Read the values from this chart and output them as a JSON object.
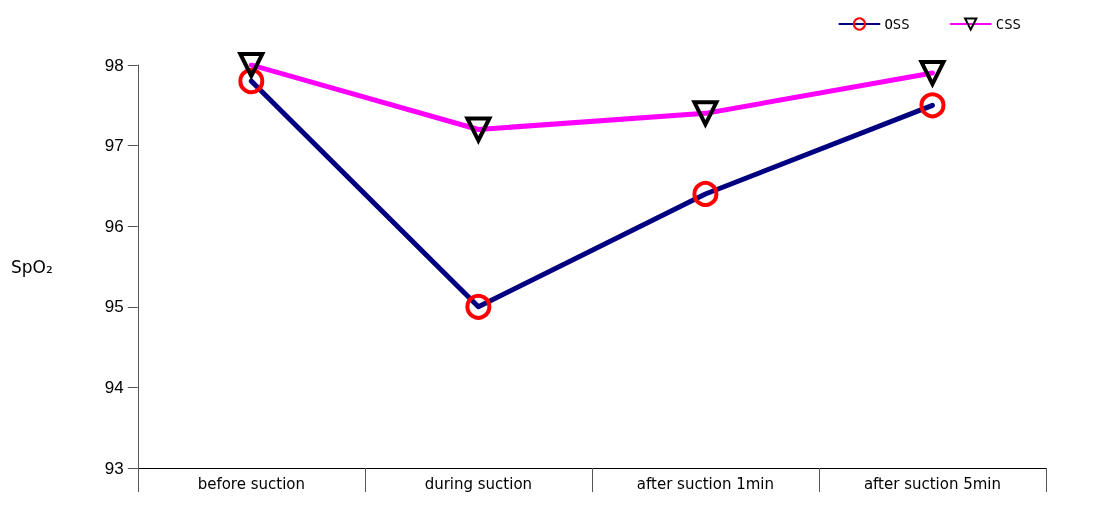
{
  "chart_data": {
    "type": "line",
    "ylabel": "SpO₂",
    "categories": [
      "before suction",
      "during suction",
      "after suction 1min",
      "after suction 5min"
    ],
    "series": [
      {
        "name": "OSS",
        "color": "#000080",
        "marker": "circle",
        "values": [
          97.8,
          95.0,
          96.4,
          97.5
        ]
      },
      {
        "name": "CSS",
        "color": "#ff00ff",
        "marker": "triangle",
        "values": [
          98.0,
          97.2,
          97.4,
          97.9
        ]
      }
    ],
    "ylim": [
      93,
      98
    ],
    "yticks": [
      93,
      94,
      95,
      96,
      97,
      98
    ],
    "grid": false,
    "legend": "top right",
    "line_style": "solid"
  }
}
